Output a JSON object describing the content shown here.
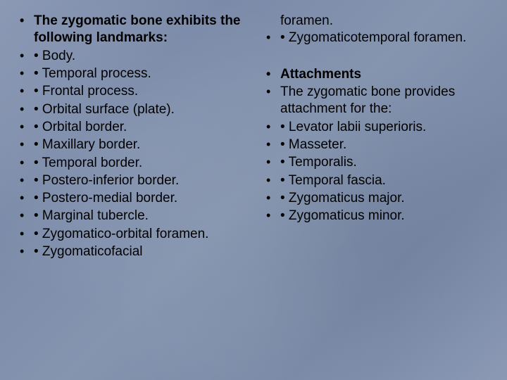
{
  "slide": {
    "background_colors": {
      "base": "#8090ac",
      "gradient_light": "#8b99b5",
      "gradient_dark": "#7888a5"
    },
    "text_color": "#000000",
    "font_family": "Arial",
    "font_size_pt": 19,
    "line_height": 1.28,
    "bullet_char": "•",
    "left_column": {
      "items": [
        {
          "text": "The zygomatic bone exhibits the following landmarks:",
          "bold": true
        },
        {
          "text": "• Body.",
          "bold": false
        },
        {
          "text": "• Temporal process.",
          "bold": false
        },
        {
          "text": "• Frontal process.",
          "bold": false
        },
        {
          "text": "• Orbital surface (plate).",
          "bold": false
        },
        {
          "text": "• Orbital border.",
          "bold": false
        },
        {
          "text": "• Maxillary border.",
          "bold": false
        },
        {
          "text": "• Temporal border.",
          "bold": false
        },
        {
          "text": "• Postero-inferior border.",
          "bold": false
        },
        {
          "text": "• Postero-medial border.",
          "bold": false
        },
        {
          "text": "• Marginal tubercle.",
          "bold": false
        },
        {
          "text": "• Zygomatico-orbital foramen.",
          "bold": false
        },
        {
          "text": "• Zygomaticofacial",
          "bold": false
        }
      ]
    },
    "right_column": {
      "continuation": "foramen.",
      "items_top": [
        {
          "text": "• Zygomaticotemporal foramen.",
          "bold": false
        }
      ],
      "items_bottom": [
        {
          "text": "Attachments",
          "bold": true
        },
        {
          "text": "The zygomatic bone provides attachment for the:",
          "bold": false
        },
        {
          "text": "• Levator labii superioris.",
          "bold": false
        },
        {
          "text": "• Masseter.",
          "bold": false
        },
        {
          "text": "• Temporalis.",
          "bold": false
        },
        {
          "text": "• Temporal fascia.",
          "bold": false
        },
        {
          "text": "• Zygomaticus major.",
          "bold": false
        },
        {
          "text": "• Zygomaticus minor.",
          "bold": false
        }
      ]
    }
  }
}
